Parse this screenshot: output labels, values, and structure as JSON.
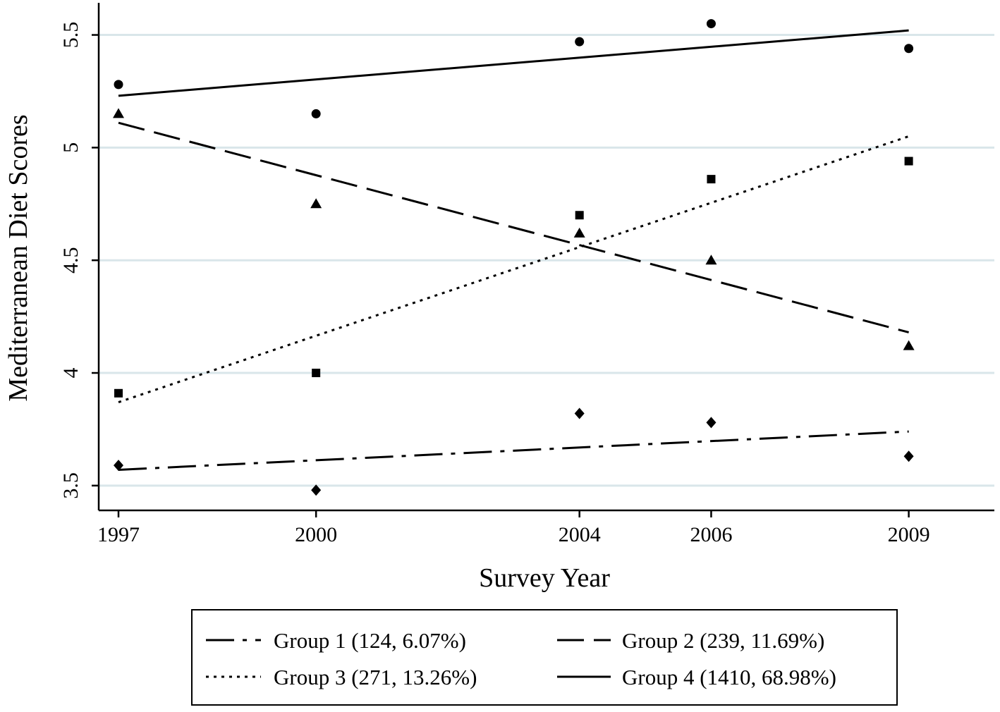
{
  "chart_data": {
    "type": "scatter",
    "title": "",
    "xlabel": "Survey Year",
    "ylabel": "Mediterranean Diet Scores",
    "x": [
      1997,
      2000,
      2004,
      2006,
      2009
    ],
    "xlim": [
      1996.7,
      2010.3
    ],
    "ylim": [
      3.39,
      5.63
    ],
    "yticks": [
      3.5,
      4,
      4.5,
      5,
      5.5
    ],
    "ytick_labels": [
      "3.5",
      "4",
      "4.5",
      "5",
      "5.5"
    ],
    "xtick_labels": [
      "1997",
      "2000",
      "2004",
      "2006",
      "2009"
    ],
    "grid": true,
    "legend_position": "bottom",
    "series": [
      {
        "name": "Group 1 (124, 6.07%)",
        "marker": "diamond",
        "line_style": "dash-dot",
        "points": [
          3.59,
          3.48,
          3.82,
          3.78,
          3.63
        ],
        "fit": [
          3.57,
          3.74
        ]
      },
      {
        "name": "Group 2 (239, 11.69%)",
        "marker": "triangle",
        "line_style": "dashed",
        "points": [
          5.15,
          4.75,
          4.62,
          4.5,
          4.12
        ],
        "fit": [
          5.11,
          4.18
        ]
      },
      {
        "name": "Group 3 (271, 13.26%)",
        "marker": "square",
        "line_style": "dotted",
        "points": [
          3.91,
          4.0,
          4.7,
          4.86,
          4.94
        ],
        "fit": [
          3.87,
          5.05
        ]
      },
      {
        "name": "Group 4 (1410, 68.98%)",
        "marker": "circle",
        "line_style": "solid",
        "points": [
          5.28,
          5.15,
          5.47,
          5.55,
          5.44
        ],
        "fit": [
          5.23,
          5.52
        ]
      }
    ]
  }
}
